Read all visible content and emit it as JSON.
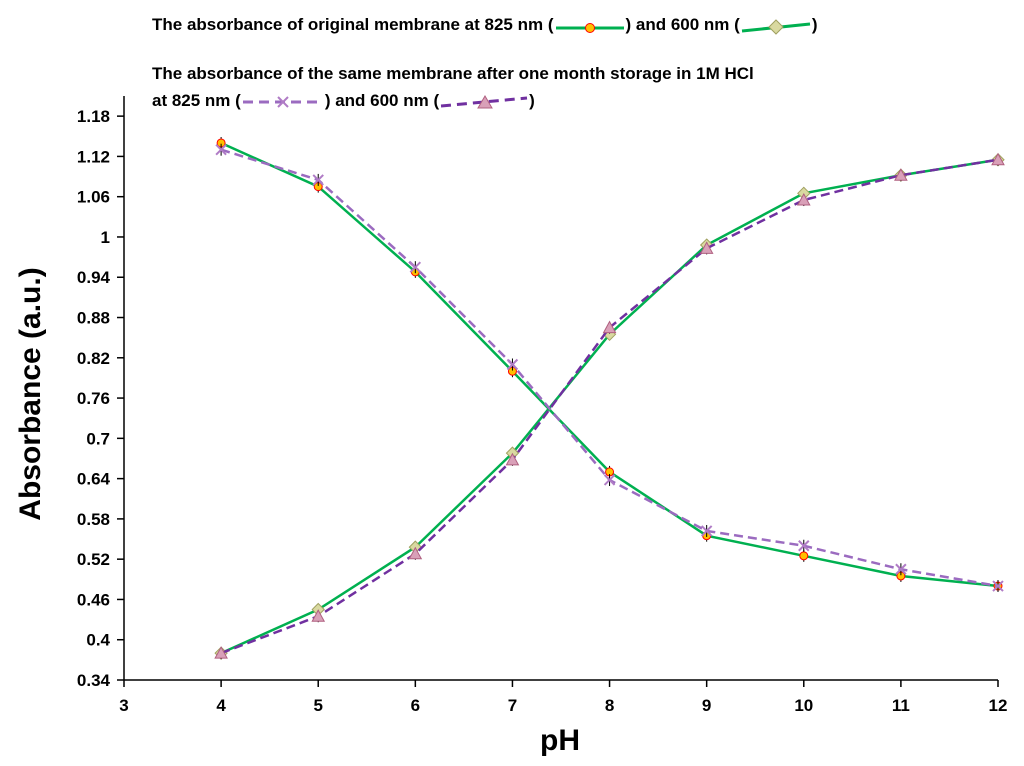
{
  "chart_data": {
    "type": "line",
    "title": "",
    "xlabel": "pH",
    "ylabel": "Absorbance (a.u.)",
    "xlim": [
      3,
      12
    ],
    "ylim": [
      0.34,
      1.21
    ],
    "xticks": [
      3,
      4,
      5,
      6,
      7,
      8,
      9,
      10,
      11,
      12
    ],
    "yticks": [
      0.34,
      0.4,
      0.46,
      0.52,
      0.58,
      0.64,
      0.7,
      0.76,
      0.82,
      0.88,
      0.94,
      1,
      1.06,
      1.12,
      1.18
    ],
    "ytick_labels": [
      "0.34",
      "0.4",
      "0.46",
      "0.52",
      "0.58",
      "0.64",
      "0.7",
      "0.76",
      "0.82",
      "0.88",
      "0.94",
      "1",
      "1.06",
      "1.12",
      "1.18"
    ],
    "x": [
      4,
      5,
      6,
      7,
      8,
      9,
      10,
      11,
      12
    ],
    "grid": false,
    "legend_placement": "top",
    "legend": {
      "line1_prefix": "The absorbance of original  membrane at 825 nm (",
      "line1_mid": ") and 600 nm (",
      "line1_end": ")",
      "line2": "The absorbance of the same  membrane after one month storage in 1M HCl",
      "line3_prefix": "at   825 nm (",
      "line3_mid": ") and 600 nm (",
      "line3_end": ")"
    },
    "series": [
      {
        "key": "orig825",
        "color": "#00b050",
        "dash": false,
        "marker": "circle",
        "marker_color": "#ffc000",
        "values": [
          1.14,
          1.075,
          0.948,
          0.8,
          0.65,
          0.555,
          0.525,
          0.495,
          0.48
        ]
      },
      {
        "key": "orig600",
        "color": "#00b050",
        "dash": false,
        "marker": "diamond",
        "marker_color": "#d9d9a0",
        "values": [
          0.38,
          0.445,
          0.538,
          0.678,
          0.855,
          0.988,
          1.065,
          1.092,
          1.115
        ]
      },
      {
        "key": "hcl825",
        "color": "#9b6bc0",
        "dash": true,
        "marker": "x",
        "marker_color": "#b07cc6",
        "values": [
          1.13,
          1.085,
          0.955,
          0.81,
          0.638,
          0.562,
          0.54,
          0.505,
          0.48
        ]
      },
      {
        "key": "hcl600",
        "color": "#7030a0",
        "dash": true,
        "marker": "triangle",
        "marker_color": "#d9a0b8",
        "values": [
          0.38,
          0.435,
          0.528,
          0.668,
          0.865,
          0.983,
          1.055,
          1.092,
          1.115
        ]
      }
    ]
  }
}
